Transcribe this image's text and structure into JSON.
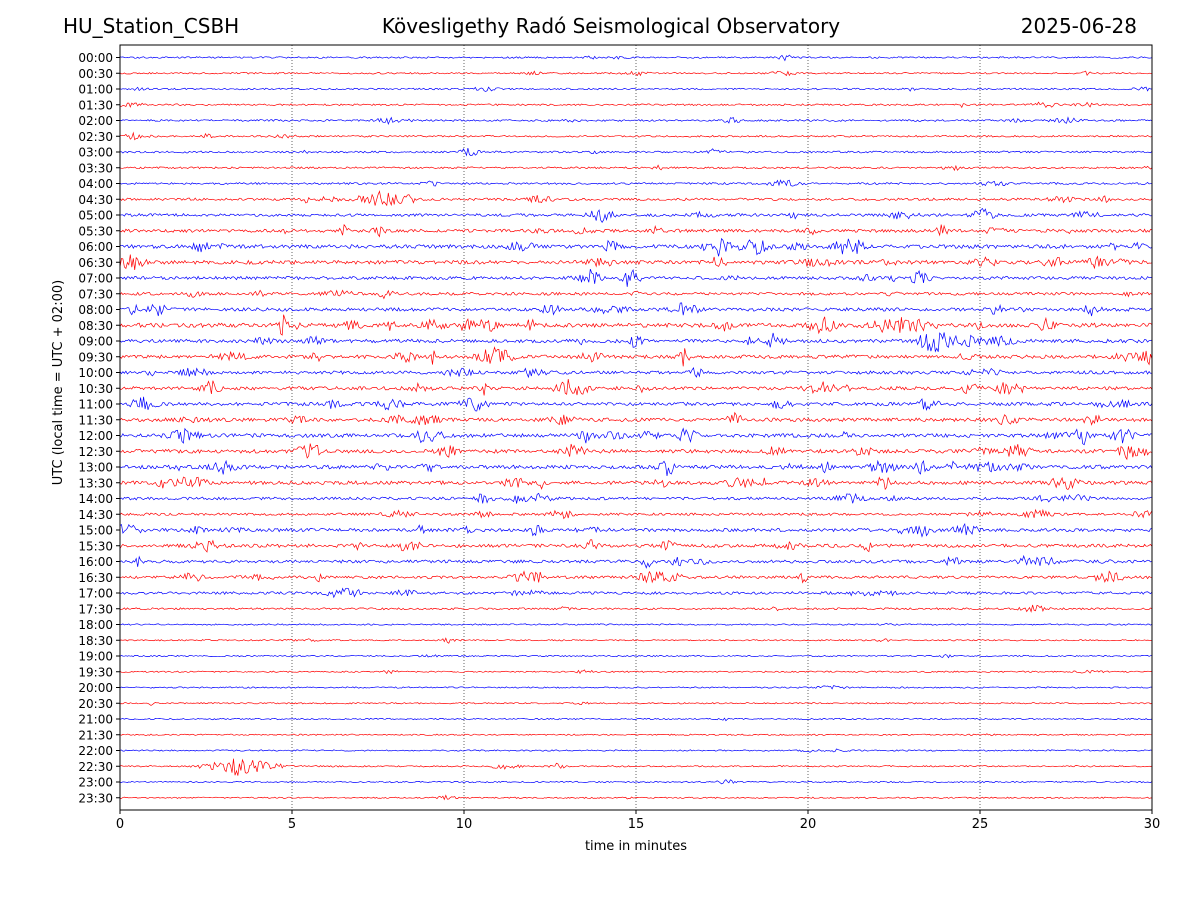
{
  "header": {
    "station": "HU_Station_CSBH",
    "title": "Kövesligethy Radó Seismological Observatory",
    "date": "2025-06-28"
  },
  "chart_data": {
    "type": "line",
    "xlabel": "time in minutes",
    "ylabel": "UTC (local time = UTC + 02:00)",
    "xlim": [
      0,
      30
    ],
    "x_ticks": [
      "0",
      "5",
      "10",
      "15",
      "20",
      "25",
      "30"
    ],
    "grid": "vertical dotted lines at 5-minute intervals",
    "trace_colors": [
      "#0000ff",
      "#ff0000"
    ],
    "row_labels": [
      "00:00",
      "00:30",
      "01:00",
      "01:30",
      "02:00",
      "02:30",
      "03:00",
      "03:30",
      "04:00",
      "04:30",
      "05:00",
      "05:30",
      "06:00",
      "06:30",
      "07:00",
      "07:30",
      "08:00",
      "08:30",
      "09:00",
      "09:30",
      "10:00",
      "10:30",
      "11:00",
      "11:30",
      "12:00",
      "12:30",
      "13:00",
      "13:30",
      "14:00",
      "14:30",
      "15:00",
      "15:30",
      "16:00",
      "16:30",
      "17:00",
      "17:30",
      "18:00",
      "18:30",
      "19:00",
      "19:30",
      "20:00",
      "20:30",
      "21:00",
      "21:30",
      "22:00",
      "22:30",
      "23:00",
      "23:30"
    ],
    "activity_level": [
      0.12,
      0.1,
      0.12,
      0.15,
      0.18,
      0.15,
      0.2,
      0.18,
      0.22,
      0.35,
      0.45,
      0.55,
      0.7,
      0.7,
      0.55,
      0.45,
      0.6,
      0.8,
      0.65,
      0.65,
      0.55,
      0.6,
      0.6,
      0.65,
      0.7,
      0.7,
      0.7,
      0.65,
      0.45,
      0.35,
      0.55,
      0.6,
      0.5,
      0.45,
      0.4,
      0.2,
      0.06,
      0.05,
      0.05,
      0.05,
      0.05,
      0.05,
      0.05,
      0.05,
      0.05,
      0.08,
      0.05,
      0.05
    ],
    "notable_events": [
      {
        "row": "04:30",
        "start_min": 6.6,
        "end_min": 8.6,
        "amplitude": 0.7
      },
      {
        "row": "06:00",
        "start_min": 20.6,
        "end_min": 21.8,
        "amplitude": 0.8
      },
      {
        "row": "08:30",
        "start_min": 21.3,
        "end_min": 24.0,
        "amplitude": 0.6
      },
      {
        "row": "09:30",
        "start_min": 9.0,
        "end_min": 9.2,
        "amplitude": 1.0
      },
      {
        "row": "22:30",
        "start_min": 2.0,
        "end_min": 5.0,
        "amplitude": 0.6
      }
    ]
  }
}
